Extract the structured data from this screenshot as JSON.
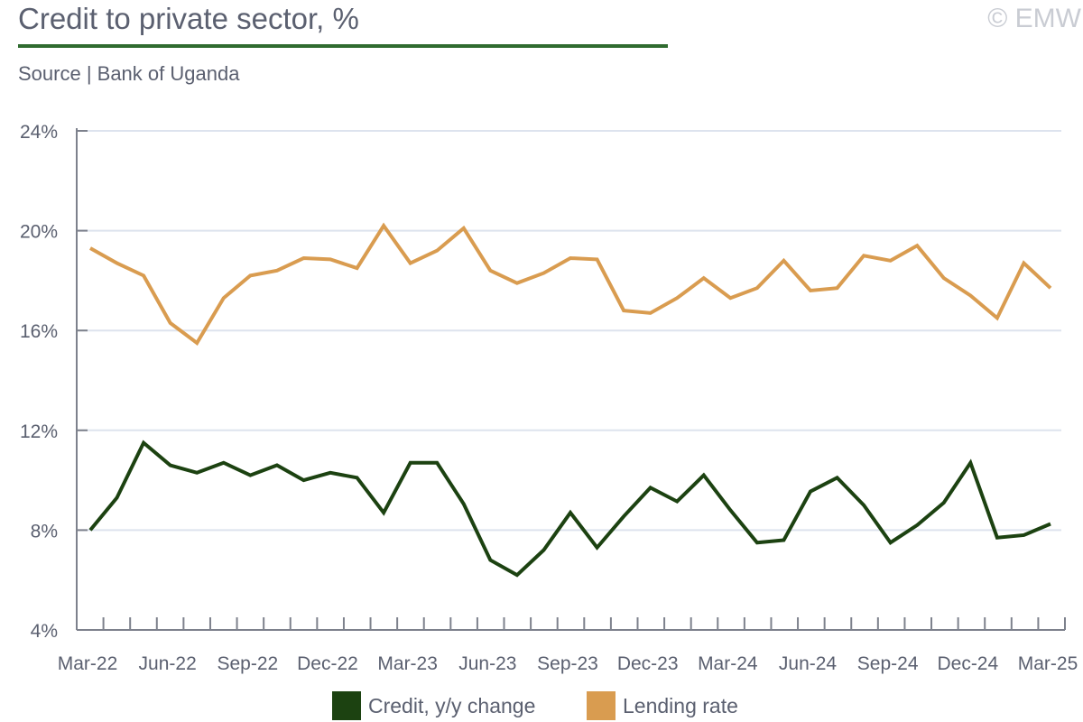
{
  "title": "Credit to private sector, %",
  "source": "Source | Bank of Uganda",
  "copyright": "© EMW",
  "chart_data": {
    "type": "line",
    "title": "Credit to private sector, %",
    "xlabel": "",
    "ylabel": "",
    "ylim": [
      4,
      24
    ],
    "yticks": [
      4,
      8,
      12,
      16,
      20,
      24
    ],
    "ytick_labels": [
      "4%",
      "8%",
      "12%",
      "16%",
      "20%",
      "24%"
    ],
    "x": [
      "Mar-22",
      "Apr-22",
      "May-22",
      "Jun-22",
      "Jul-22",
      "Aug-22",
      "Sep-22",
      "Oct-22",
      "Nov-22",
      "Dec-22",
      "Jan-23",
      "Feb-23",
      "Mar-23",
      "Apr-23",
      "May-23",
      "Jun-23",
      "Jul-23",
      "Aug-23",
      "Sep-23",
      "Oct-23",
      "Nov-23",
      "Dec-23",
      "Jan-24",
      "Feb-24",
      "Mar-24",
      "Apr-24",
      "May-24",
      "Jun-24",
      "Jul-24",
      "Aug-24",
      "Sep-24",
      "Oct-24",
      "Nov-24",
      "Dec-24",
      "Jan-25",
      "Feb-25",
      "Mar-25"
    ],
    "xtick_labels": [
      "Mar-22",
      "Jun-22",
      "Sep-22",
      "Dec-22",
      "Mar-23",
      "Jun-23",
      "Sep-23",
      "Dec-23",
      "Mar-24",
      "Jun-24",
      "Sep-24",
      "Dec-24",
      "Mar-25"
    ],
    "grid": true,
    "legend_position": "bottom",
    "series": [
      {
        "name": "Credit, y/y change",
        "color": "#1c4211",
        "values": [
          8.0,
          9.3,
          11.5,
          10.6,
          10.3,
          10.7,
          10.2,
          10.6,
          10.0,
          10.3,
          10.1,
          8.7,
          10.7,
          10.7,
          9.05,
          6.8,
          6.2,
          7.2,
          8.7,
          7.3,
          8.55,
          9.7,
          9.15,
          10.2,
          8.8,
          7.5,
          7.6,
          9.55,
          10.1,
          9.0,
          7.5,
          8.2,
          9.1,
          10.7,
          7.7,
          7.8,
          8.25
        ]
      },
      {
        "name": "Lending rate",
        "color": "#d99c50",
        "values": [
          19.3,
          18.7,
          18.2,
          16.3,
          15.5,
          17.3,
          18.2,
          18.4,
          18.9,
          18.85,
          18.5,
          20.2,
          18.7,
          19.2,
          20.1,
          18.4,
          17.9,
          18.3,
          18.9,
          18.85,
          16.8,
          16.7,
          17.3,
          18.1,
          17.3,
          17.7,
          18.8,
          17.6,
          17.7,
          19.0,
          18.8,
          19.4,
          18.1,
          17.4,
          16.5,
          18.7,
          17.7
        ]
      }
    ]
  }
}
